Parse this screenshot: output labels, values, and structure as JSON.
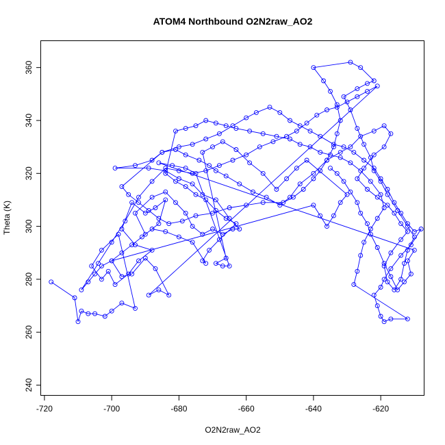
{
  "chart_data": {
    "type": "scatter",
    "title": "ATOM4 Northbound O2N2raw_AO2",
    "xlabel": "O2N2raw_AO2",
    "ylabel": "Theta (K)",
    "xlim": [
      -721,
      -607
    ],
    "ylim": [
      236,
      370
    ],
    "xticks": [
      -720,
      -700,
      -680,
      -660,
      -640,
      -620
    ],
    "yticks": [
      240,
      260,
      280,
      300,
      320,
      340,
      360
    ],
    "grid": false,
    "legend": "none",
    "series": [
      {
        "color": "#0000ff",
        "marker": "open-circle",
        "line": true,
        "points": [
          [
            -718,
            279
          ],
          [
            -711,
            273
          ],
          [
            -710,
            264
          ],
          [
            -709,
            268
          ],
          [
            -707,
            267
          ],
          [
            -705,
            267
          ],
          [
            -702,
            266
          ],
          [
            -700,
            268
          ],
          [
            -697,
            271
          ],
          [
            -693,
            269
          ],
          [
            -698,
            297
          ],
          [
            -703,
            291
          ],
          [
            -706,
            285
          ],
          [
            -703,
            280
          ],
          [
            -701,
            283
          ],
          [
            -699,
            278
          ],
          [
            -695,
            282
          ],
          [
            -692,
            287
          ],
          [
            -688,
            291
          ],
          [
            -693,
            293
          ],
          [
            -697,
            299
          ],
          [
            -694,
            309
          ],
          [
            -690,
            305
          ],
          [
            -687,
            307
          ],
          [
            -684,
            310
          ],
          [
            -686,
            301
          ],
          [
            -690,
            297
          ],
          [
            -693,
            305
          ],
          [
            -688,
            311
          ],
          [
            -684,
            313
          ],
          [
            -681,
            309
          ],
          [
            -678,
            305
          ],
          [
            -676,
            300
          ],
          [
            -673,
            297
          ],
          [
            -670,
            299
          ],
          [
            -667,
            297
          ],
          [
            -664,
            299
          ],
          [
            -662,
            299
          ],
          [
            -665,
            303
          ],
          [
            -669,
            310
          ],
          [
            -673,
            312
          ],
          [
            -676,
            316
          ],
          [
            -680,
            318
          ],
          [
            -684,
            321
          ],
          [
            -689,
            322
          ],
          [
            -699,
            322
          ],
          [
            -693,
            323
          ],
          [
            -688,
            325
          ],
          [
            -685,
            328
          ],
          [
            -681,
            329
          ],
          [
            -678,
            327
          ],
          [
            -674,
            325
          ],
          [
            -671,
            323
          ],
          [
            -669,
            321
          ],
          [
            -666,
            319
          ],
          [
            -662,
            316
          ],
          [
            -658,
            313
          ],
          [
            -654,
            311
          ],
          [
            -650,
            308
          ],
          [
            -647,
            311
          ],
          [
            -644,
            316
          ],
          [
            -640,
            320
          ],
          [
            -636,
            325
          ],
          [
            -632,
            328
          ],
          [
            -629,
            330
          ],
          [
            -626,
            334
          ],
          [
            -622,
            336
          ],
          [
            -619,
            338
          ],
          [
            -617,
            335
          ],
          [
            -619,
            330
          ],
          [
            -622,
            327
          ],
          [
            -625,
            322
          ],
          [
            -627,
            318
          ],
          [
            -624,
            314
          ],
          [
            -621,
            311
          ],
          [
            -618,
            308
          ],
          [
            -616,
            305
          ],
          [
            -614,
            301
          ],
          [
            -612,
            298
          ],
          [
            -614,
            295
          ],
          [
            -617,
            290
          ],
          [
            -619,
            285
          ],
          [
            -618,
            279
          ],
          [
            -616,
            276
          ],
          [
            -614,
            280
          ],
          [
            -613,
            286
          ],
          [
            -612,
            291
          ],
          [
            -610,
            296
          ],
          [
            -612,
            300
          ],
          [
            -615,
            306
          ],
          [
            -618,
            312
          ],
          [
            -620,
            317
          ],
          [
            -622,
            321
          ],
          [
            -623,
            326
          ],
          [
            -625,
            331
          ],
          [
            -627,
            337
          ],
          [
            -629,
            344
          ],
          [
            -631,
            349
          ],
          [
            -627,
            352
          ],
          [
            -624,
            354
          ],
          [
            -622,
            355
          ],
          [
            -626,
            360
          ],
          [
            -629,
            362
          ],
          [
            -640,
            360
          ],
          [
            -637,
            355
          ],
          [
            -635,
            351
          ],
          [
            -633,
            346
          ],
          [
            -632,
            340
          ],
          [
            -633,
            335
          ],
          [
            -634,
            330
          ],
          [
            -636,
            325
          ],
          [
            -638,
            321
          ],
          [
            -640,
            318
          ],
          [
            -643,
            314
          ],
          [
            -646,
            311
          ],
          [
            -649,
            309
          ],
          [
            -655,
            309
          ],
          [
            -660,
            308
          ],
          [
            -665,
            307
          ],
          [
            -670,
            305
          ],
          [
            -675,
            304
          ],
          [
            -679,
            302
          ],
          [
            -683,
            301
          ],
          [
            -686,
            303
          ],
          [
            -689,
            306
          ],
          [
            -692,
            309
          ],
          [
            -695,
            312
          ],
          [
            -697,
            315
          ],
          [
            -685,
            328
          ],
          [
            -680,
            330
          ],
          [
            -676,
            331
          ],
          [
            -672,
            333
          ],
          [
            -668,
            335
          ],
          [
            -664,
            338
          ],
          [
            -660,
            341
          ],
          [
            -657,
            343
          ],
          [
            -653,
            345
          ],
          [
            -650,
            343
          ],
          [
            -647,
            340
          ],
          [
            -644,
            338
          ],
          [
            -641,
            336
          ],
          [
            -638,
            334
          ],
          [
            -634,
            331
          ],
          [
            -631,
            330
          ],
          [
            -628,
            328
          ],
          [
            -625,
            325
          ],
          [
            -622,
            322
          ],
          [
            -620,
            318
          ],
          [
            -618,
            314
          ],
          [
            -616,
            309
          ],
          [
            -614,
            305
          ],
          [
            -612,
            301
          ],
          [
            -610,
            298
          ],
          [
            -608,
            299
          ],
          [
            -611,
            293
          ],
          [
            -614,
            289
          ],
          [
            -617,
            284
          ],
          [
            -619,
            280
          ],
          [
            -620,
            277
          ],
          [
            -622,
            274
          ],
          [
            -621,
            270
          ],
          [
            -620,
            266
          ],
          [
            -619,
            264
          ],
          [
            -617,
            265
          ],
          [
            -612,
            265
          ],
          [
            -628,
            278
          ],
          [
            -627,
            283
          ],
          [
            -626,
            289
          ],
          [
            -625,
            294
          ],
          [
            -623,
            299
          ],
          [
            -621,
            303
          ],
          [
            -619,
            307
          ],
          [
            -620,
            312
          ],
          [
            -623,
            317
          ],
          [
            -626,
            321
          ],
          [
            -629,
            324
          ],
          [
            -632,
            326
          ],
          [
            -635,
            327
          ],
          [
            -638,
            328
          ],
          [
            -641,
            330
          ],
          [
            -644,
            331
          ],
          [
            -647,
            333
          ],
          [
            -651,
            334
          ],
          [
            -655,
            335
          ],
          [
            -659,
            336
          ],
          [
            -663,
            337
          ],
          [
            -666,
            338
          ],
          [
            -669,
            339
          ],
          [
            -672,
            340
          ],
          [
            -675,
            338
          ],
          [
            -678,
            337
          ],
          [
            -681,
            336
          ],
          [
            -684,
            320
          ],
          [
            -681,
            317
          ],
          [
            -678,
            315
          ],
          [
            -675,
            312
          ],
          [
            -672,
            310
          ],
          [
            -669,
            306
          ],
          [
            -666,
            303
          ],
          [
            -663,
            301
          ],
          [
            -668,
            295
          ],
          [
            -671,
            291
          ],
          [
            -673,
            287
          ],
          [
            -672,
            286
          ],
          [
            -676,
            294
          ],
          [
            -680,
            296
          ],
          [
            -684,
            298
          ],
          [
            -688,
            299
          ],
          [
            -691,
            296
          ],
          [
            -694,
            293
          ],
          [
            -697,
            290
          ],
          [
            -700,
            287
          ],
          [
            -703,
            285
          ],
          [
            -705,
            282
          ],
          [
            -707,
            279
          ],
          [
            -709,
            276
          ],
          [
            -704,
            286
          ],
          [
            -700,
            294
          ],
          [
            -696,
            302
          ],
          [
            -692,
            311
          ],
          [
            -688,
            317
          ],
          [
            -684,
            322
          ],
          [
            -680,
            321
          ],
          [
            -676,
            320
          ],
          [
            -672,
            321
          ],
          [
            -668,
            323
          ],
          [
            -664,
            325
          ],
          [
            -660,
            327
          ],
          [
            -656,
            330
          ],
          [
            -652,
            332
          ],
          [
            -648,
            334
          ],
          [
            -645,
            336
          ],
          [
            -642,
            339
          ],
          [
            -639,
            342
          ],
          [
            -636,
            344
          ],
          [
            -633,
            345
          ],
          [
            -630,
            347
          ],
          [
            -627,
            349
          ],
          [
            -624,
            351
          ],
          [
            -621,
            353
          ],
          [
            -689,
            274
          ],
          [
            -686,
            276
          ],
          [
            -683,
            274
          ],
          [
            -687,
            284
          ],
          [
            -690,
            288
          ],
          [
            -694,
            282
          ],
          [
            -697,
            281
          ],
          [
            -700,
            287
          ],
          [
            -640,
            308
          ],
          [
            -638,
            304
          ],
          [
            -636,
            300
          ],
          [
            -634,
            304
          ],
          [
            -632,
            309
          ],
          [
            -630,
            312
          ],
          [
            -642,
            325
          ],
          [
            -645,
            322
          ],
          [
            -648,
            318
          ],
          [
            -651,
            314
          ],
          [
            -655,
            320
          ],
          [
            -659,
            324
          ],
          [
            -663,
            329
          ],
          [
            -667,
            332
          ],
          [
            -670,
            330
          ],
          [
            -673,
            328
          ],
          [
            -666,
            288
          ],
          [
            -669,
            286
          ],
          [
            -667,
            285
          ],
          [
            -665,
            285
          ],
          [
            -675,
            320
          ],
          [
            -678,
            322
          ],
          [
            -682,
            323
          ],
          [
            -686,
            324
          ],
          [
            -610,
            291
          ],
          [
            -612,
            287
          ],
          [
            -611,
            282
          ],
          [
            -613,
            279
          ],
          [
            -615,
            276
          ],
          [
            -617,
            281
          ],
          [
            -619,
            286
          ],
          [
            -621,
            292
          ],
          [
            -623,
            297
          ],
          [
            -624,
            301
          ],
          [
            -626,
            305
          ],
          [
            -627,
            309
          ],
          [
            -629,
            313
          ],
          [
            -631,
            317
          ],
          [
            -633,
            320
          ],
          [
            -635,
            322
          ]
        ]
      }
    ]
  }
}
